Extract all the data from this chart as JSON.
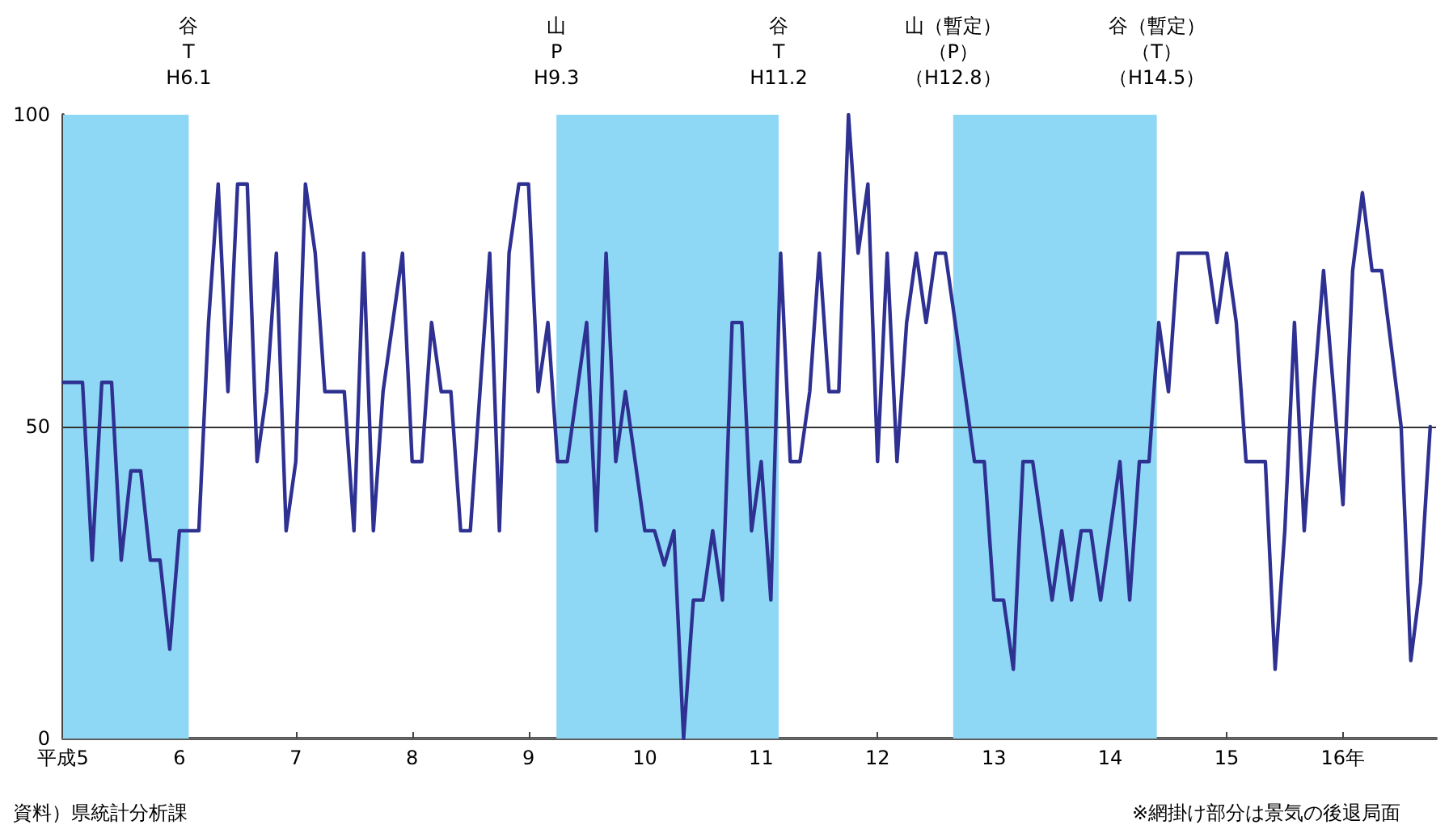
{
  "chart_data": {
    "type": "line",
    "x": [
      5,
      5.083,
      5.167,
      5.25,
      5.333,
      5.417,
      5.5,
      5.583,
      5.667,
      5.75,
      5.833,
      5.917,
      6,
      6.083,
      6.167,
      6.25,
      6.333,
      6.417,
      6.5,
      6.583,
      6.667,
      6.75,
      6.833,
      6.917,
      7,
      7.083,
      7.167,
      7.25,
      7.333,
      7.417,
      7.5,
      7.583,
      7.667,
      7.75,
      7.833,
      7.917,
      8,
      8.083,
      8.167,
      8.25,
      8.333,
      8.417,
      8.5,
      8.583,
      8.667,
      8.75,
      8.833,
      8.917,
      9,
      9.083,
      9.167,
      9.25,
      9.333,
      9.417,
      9.5,
      9.583,
      9.667,
      9.75,
      9.833,
      9.917,
      10,
      10.083,
      10.167,
      10.25,
      10.333,
      10.417,
      10.5,
      10.583,
      10.667,
      10.75,
      10.833,
      10.917,
      11,
      11.083,
      11.167,
      11.25,
      11.333,
      11.417,
      11.5,
      11.583,
      11.667,
      11.75,
      11.833,
      11.917,
      12,
      12.083,
      12.167,
      12.25,
      12.333,
      12.417,
      12.5,
      12.583,
      12.667,
      12.75,
      12.833,
      12.917,
      13,
      13.083,
      13.167,
      13.25,
      13.333,
      13.417,
      13.5,
      13.583,
      13.667,
      13.75,
      13.833,
      13.917,
      14,
      14.083,
      14.167,
      14.25,
      14.333,
      14.417,
      14.5,
      14.583,
      14.667,
      14.75,
      14.833,
      14.917,
      15,
      15.083,
      15.167,
      15.25,
      15.333,
      15.417,
      15.5,
      15.583,
      15.667,
      15.75,
      15.833,
      15.917,
      16,
      16.083,
      16.167,
      16.25,
      16.333,
      16.417,
      16.5,
      16.583,
      16.667,
      16.75
    ],
    "series": [
      {
        "color": "#2e3192",
        "values": [
          57.1,
          57.1,
          57.1,
          28.6,
          57.1,
          57.1,
          28.6,
          42.9,
          42.9,
          28.6,
          28.6,
          14.3,
          33.3,
          33.3,
          33.3,
          66.7,
          88.9,
          55.6,
          88.9,
          88.9,
          44.4,
          55.6,
          77.8,
          33.3,
          44.4,
          88.9,
          77.8,
          55.6,
          55.6,
          55.6,
          33.3,
          77.8,
          33.3,
          55.6,
          66.7,
          77.8,
          44.4,
          44.4,
          66.7,
          55.6,
          55.6,
          33.3,
          33.3,
          55.6,
          77.8,
          33.3,
          77.8,
          88.9,
          88.9,
          55.6,
          66.7,
          44.4,
          44.4,
          55.6,
          66.7,
          33.3,
          77.8,
          44.4,
          55.6,
          44.4,
          33.3,
          33.3,
          27.8,
          33.3,
          0,
          22.2,
          22.2,
          33.3,
          22.2,
          66.7,
          66.7,
          33.3,
          44.4,
          22.2,
          77.8,
          44.4,
          44.4,
          55.6,
          77.8,
          55.6,
          55.6,
          100,
          77.8,
          88.9,
          44.4,
          77.8,
          44.4,
          66.7,
          77.8,
          66.7,
          77.8,
          77.8,
          66.7,
          55.6,
          44.4,
          44.4,
          22.2,
          22.2,
          11.1,
          44.4,
          44.4,
          33.3,
          22.2,
          33.3,
          22.2,
          33.3,
          33.3,
          22.2,
          33.3,
          44.4,
          22.2,
          44.4,
          44.4,
          66.7,
          55.6,
          77.8,
          77.8,
          77.8,
          77.8,
          66.7,
          77.8,
          66.7,
          44.4,
          44.4,
          44.4,
          11.1,
          33.3,
          66.7,
          33.3,
          55.6,
          75,
          56.3,
          37.5,
          75,
          87.5,
          75,
          75,
          62.5,
          50,
          12.5,
          25,
          50
        ]
      }
    ],
    "xlim": [
      5,
      16.8
    ],
    "xticks": [
      {
        "value": 5,
        "label": "平成5"
      },
      6,
      7,
      8,
      9,
      10,
      11,
      12,
      13,
      14,
      15,
      {
        "value": 16,
        "label": "16年"
      }
    ],
    "ylim": [
      0,
      100
    ],
    "yticks": [
      0,
      50,
      100
    ],
    "grid": false,
    "marker": "none",
    "line_style": "solid",
    "ref_lines": [
      {
        "axis": "y",
        "value": 50,
        "color": "#333333"
      }
    ],
    "bands": [
      {
        "axis": "x",
        "from": 5,
        "to": 6.08,
        "color": "#8fd8f5"
      },
      {
        "axis": "x",
        "from": 9.24,
        "to": 11.15,
        "color": "#8fd8f5"
      },
      {
        "axis": "x",
        "from": 12.65,
        "to": 14.4,
        "color": "#8fd8f5"
      }
    ],
    "annotations": [
      "谷",
      "T",
      "H6.1",
      "山",
      "P",
      "H9.3",
      "谷",
      "T",
      "H11.2",
      "山（暫定）",
      "（P）",
      "（H12.8）",
      "谷（暫定）",
      "（T）",
      "（H14.5）",
      "資料）県統計分析課",
      "※網掛け部分は景気の後退局面"
    ]
  }
}
